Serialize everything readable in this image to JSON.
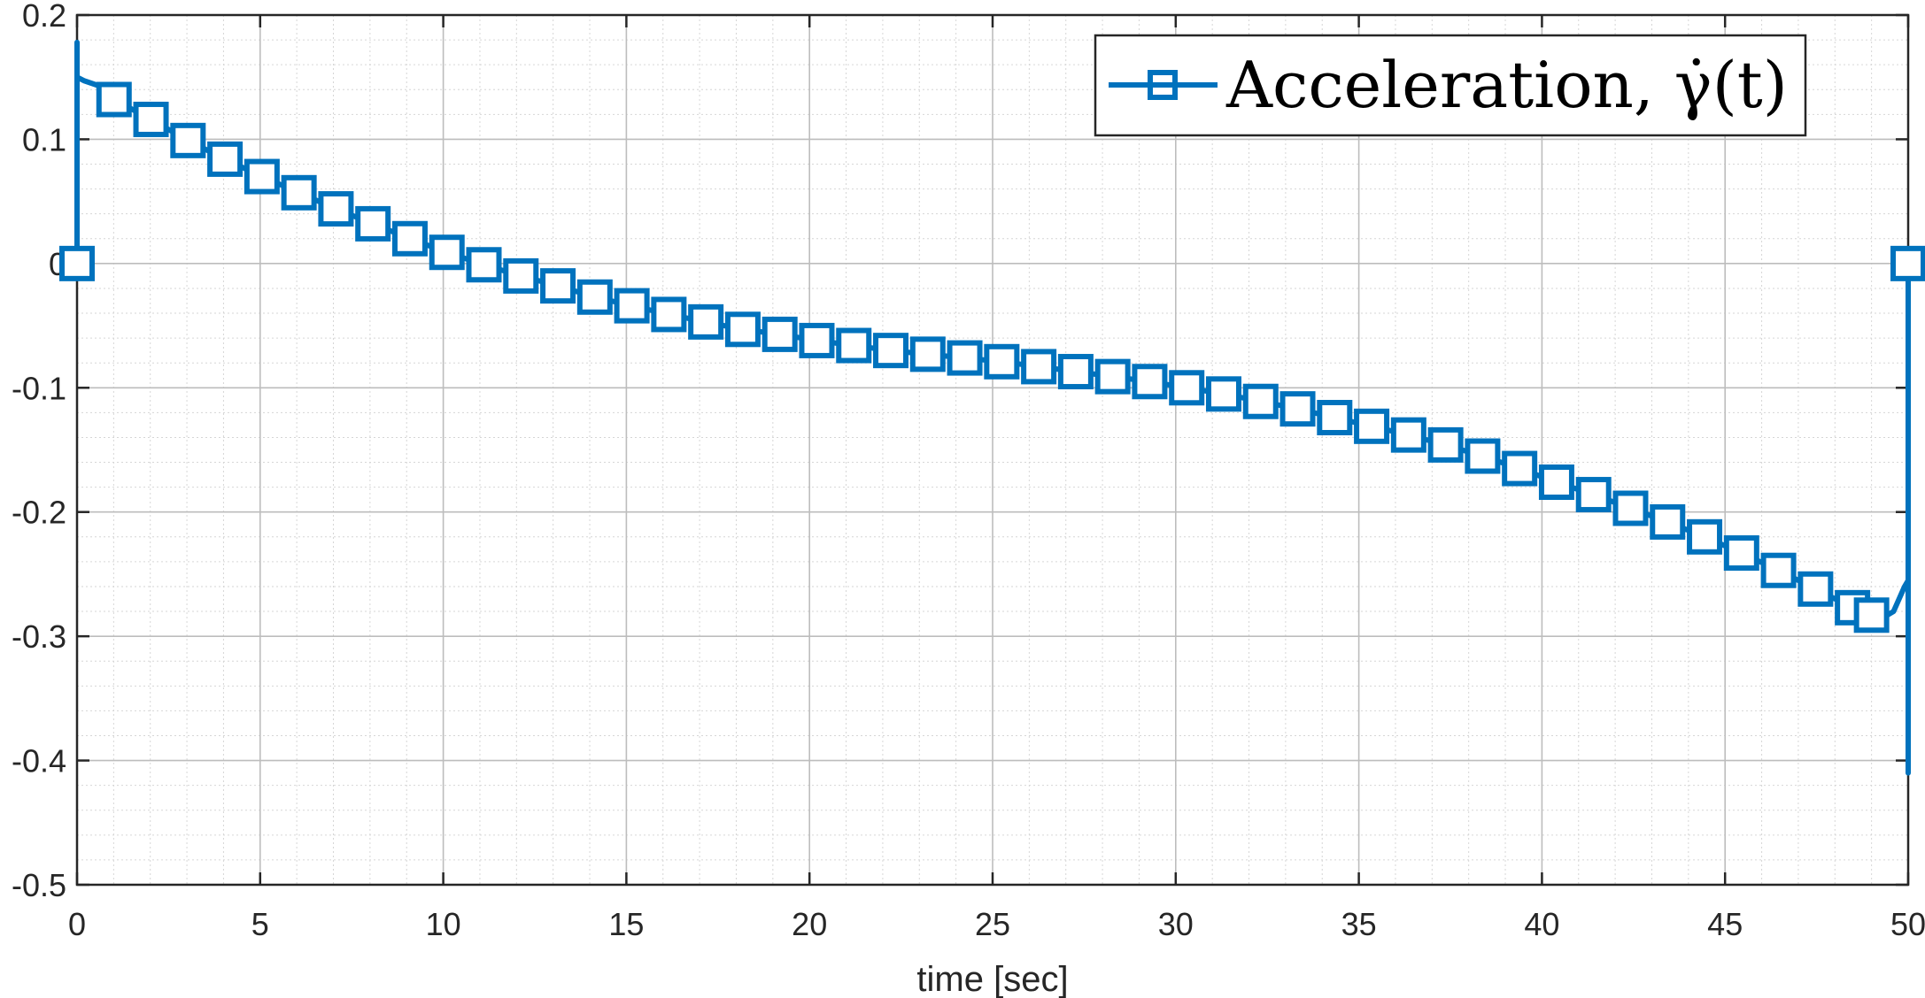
{
  "chart_data": {
    "type": "line",
    "xlabel": "time [sec]",
    "ylabel": "",
    "xlim": [
      0,
      50
    ],
    "ylim": [
      -0.5,
      0.2
    ],
    "xticks": [
      0,
      5,
      10,
      15,
      20,
      25,
      30,
      35,
      40,
      45,
      50
    ],
    "yticks": [
      -0.5,
      -0.4,
      -0.3,
      -0.2,
      -0.1,
      0,
      0.1,
      0.2
    ],
    "xtick_labels": [
      "0",
      "5",
      "10",
      "15",
      "20",
      "25",
      "30",
      "35",
      "40",
      "45",
      "50"
    ],
    "ytick_labels": [
      "-0.5",
      "-0.4",
      "-0.3",
      "-0.2",
      "-0.1",
      "0",
      "0.1",
      "0.2"
    ],
    "grid": true,
    "minor_grid": true,
    "legend_position": "top-right",
    "series": [
      {
        "name": "Acceleration, γ̇(t)",
        "color": "#0072BD",
        "marker": "square",
        "line": [
          [
            0,
            0
          ],
          [
            0,
            0.178
          ],
          [
            0,
            0.15
          ],
          [
            0.2,
            0.147
          ],
          [
            0.6,
            0.143
          ],
          [
            1.01,
            0.132
          ],
          [
            2.02,
            0.116
          ],
          [
            3.03,
            0.099
          ],
          [
            4.04,
            0.084
          ],
          [
            5.05,
            0.07
          ],
          [
            6.06,
            0.057
          ],
          [
            7.07,
            0.044
          ],
          [
            8.08,
            0.032
          ],
          [
            9.09,
            0.02
          ],
          [
            10.1,
            0.009
          ],
          [
            11.11,
            -0.001
          ],
          [
            12.12,
            -0.01
          ],
          [
            13.13,
            -0.018
          ],
          [
            14.14,
            -0.027
          ],
          [
            15.15,
            -0.034
          ],
          [
            16.16,
            -0.041
          ],
          [
            17.17,
            -0.047
          ],
          [
            18.18,
            -0.053
          ],
          [
            19.19,
            -0.057
          ],
          [
            20.2,
            -0.062
          ],
          [
            21.21,
            -0.066
          ],
          [
            22.22,
            -0.07
          ],
          [
            23.23,
            -0.073
          ],
          [
            24.24,
            -0.076
          ],
          [
            25.25,
            -0.079
          ],
          [
            26.26,
            -0.083
          ],
          [
            27.27,
            -0.087
          ],
          [
            28.28,
            -0.091
          ],
          [
            29.29,
            -0.095
          ],
          [
            30.3,
            -0.1
          ],
          [
            31.31,
            -0.105
          ],
          [
            32.32,
            -0.111
          ],
          [
            33.33,
            -0.117
          ],
          [
            34.34,
            -0.124
          ],
          [
            35.35,
            -0.131
          ],
          [
            36.36,
            -0.138
          ],
          [
            37.37,
            -0.146
          ],
          [
            38.38,
            -0.155
          ],
          [
            39.39,
            -0.165
          ],
          [
            40.4,
            -0.176
          ],
          [
            41.41,
            -0.186
          ],
          [
            42.42,
            -0.197
          ],
          [
            43.43,
            -0.208
          ],
          [
            44.44,
            -0.22
          ],
          [
            45.45,
            -0.233
          ],
          [
            46.46,
            -0.247
          ],
          [
            47.47,
            -0.262
          ],
          [
            48.48,
            -0.277
          ],
          [
            49.2,
            -0.287
          ],
          [
            49.6,
            -0.28
          ],
          [
            49.9,
            -0.26
          ],
          [
            50,
            -0.255
          ],
          [
            50,
            -0.41
          ],
          [
            50,
            0
          ]
        ],
        "markers": [
          [
            0,
            0
          ],
          [
            1.01,
            0.132
          ],
          [
            2.02,
            0.116
          ],
          [
            3.03,
            0.099
          ],
          [
            4.04,
            0.084
          ],
          [
            5.05,
            0.07
          ],
          [
            6.06,
            0.057
          ],
          [
            7.07,
            0.044
          ],
          [
            8.08,
            0.032
          ],
          [
            9.09,
            0.02
          ],
          [
            10.1,
            0.009
          ],
          [
            11.11,
            -0.001
          ],
          [
            12.12,
            -0.01
          ],
          [
            13.13,
            -0.018
          ],
          [
            14.14,
            -0.027
          ],
          [
            15.15,
            -0.034
          ],
          [
            16.16,
            -0.041
          ],
          [
            17.17,
            -0.047
          ],
          [
            18.18,
            -0.053
          ],
          [
            19.19,
            -0.057
          ],
          [
            20.2,
            -0.062
          ],
          [
            21.21,
            -0.066
          ],
          [
            22.22,
            -0.07
          ],
          [
            23.23,
            -0.073
          ],
          [
            24.24,
            -0.076
          ],
          [
            25.25,
            -0.079
          ],
          [
            26.26,
            -0.083
          ],
          [
            27.27,
            -0.087
          ],
          [
            28.28,
            -0.091
          ],
          [
            29.29,
            -0.095
          ],
          [
            30.3,
            -0.1
          ],
          [
            31.31,
            -0.105
          ],
          [
            32.32,
            -0.111
          ],
          [
            33.33,
            -0.117
          ],
          [
            34.34,
            -0.124
          ],
          [
            35.35,
            -0.131
          ],
          [
            36.36,
            -0.138
          ],
          [
            37.37,
            -0.146
          ],
          [
            38.38,
            -0.155
          ],
          [
            39.39,
            -0.165
          ],
          [
            40.4,
            -0.176
          ],
          [
            41.41,
            -0.186
          ],
          [
            42.42,
            -0.197
          ],
          [
            43.43,
            -0.208
          ],
          [
            44.44,
            -0.22
          ],
          [
            45.45,
            -0.233
          ],
          [
            46.46,
            -0.247
          ],
          [
            47.47,
            -0.262
          ],
          [
            48.48,
            -0.277
          ],
          [
            49.0,
            -0.283
          ],
          [
            50,
            0
          ]
        ]
      }
    ]
  }
}
